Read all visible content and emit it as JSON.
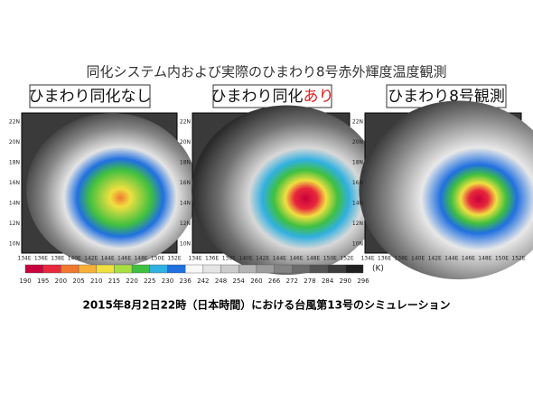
{
  "title": "同化システム内および実際のひまわり8号赤外輝度温度観測",
  "panels": [
    {
      "label": "ひまわり同化なし"
    },
    {
      "label_parts": [
        "ひまわり同化",
        "あり"
      ]
    },
    {
      "label": "ひまわり8号観測"
    }
  ],
  "lat_labels": [
    "22N",
    "20N",
    "18N",
    "16N",
    "14N",
    "12N",
    "10N"
  ],
  "lon_labels": [
    "134E",
    "136E",
    "138E",
    "140E",
    "142E",
    "144E",
    "146E",
    "148E",
    "150E",
    "152E"
  ],
  "colorbar": {
    "ticks": [
      190,
      195,
      200,
      205,
      210,
      215,
      220,
      225,
      230,
      236,
      242,
      248,
      254,
      260,
      266,
      272,
      278,
      284,
      290,
      296
    ],
    "unit": "(K)",
    "colors": [
      "#c8003c",
      "#e8283c",
      "#f07830",
      "#f8b038",
      "#f0e040",
      "#a8e040",
      "#40c040",
      "#30b0e0",
      "#2070e0",
      "#f8f8f8",
      "#e4e4e4",
      "#cccccc",
      "#b4b4b4",
      "#9c9c9c",
      "#848484",
      "#6c6c6c",
      "#545454",
      "#3c3c3c",
      "#202020"
    ]
  },
  "caption": "2015年8月2日22時（日本時間）における台風第13号のシミュレーション"
}
